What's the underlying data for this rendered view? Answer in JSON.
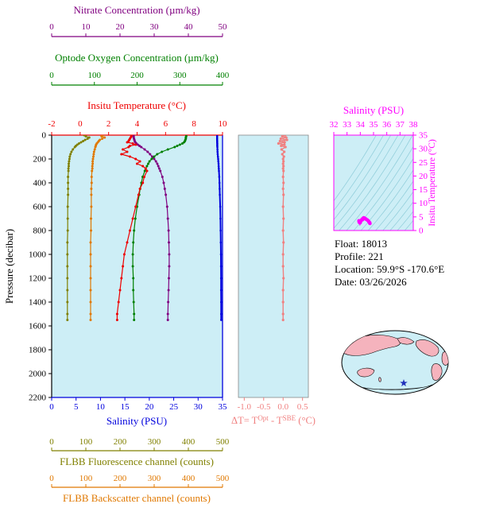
{
  "colors": {
    "plot_bg": "#cdeef6",
    "nitrate": "#800080",
    "oxygen": "#008000",
    "temperature": "#ee0000",
    "salinity": "#0000dd",
    "fluorescence": "#808000",
    "backscatter": "#e07800",
    "delta_t": "#f08080",
    "ts": "#ff00ff",
    "pressure": "#000000",
    "isopycnal": "#8ccbd8"
  },
  "titles": {
    "nitrate": "Nitrate Concentration (µm/kg)",
    "oxygen": "Optode Oxygen Concentration (µm/kg)",
    "temperature": "Insitu Temperature (°C)",
    "salinity": "Salinity (PSU)",
    "pressure": "Pressure (decibar)",
    "fluorescence": "FLBB Fluorescence channel (counts)",
    "backscatter": "FLBB Backscatter channel (counts)",
    "ts_salinity": "Salinity (PSU)",
    "ts_temperature": "Insitu Temperature (°C)"
  },
  "info": {
    "float": "Float:  18013",
    "profile": "Profile:  221",
    "location": "Location:  59.9°S -170.6°E",
    "date": "Date:  03/26/2026"
  },
  "map": {
    "land": "#f5b3bd",
    "ocean": "#cdeef6",
    "star": "#2233bb"
  },
  "chart_data": [
    {
      "type": "line",
      "title": "Float vertical profiles vs pressure",
      "y_axis": {
        "label": "Pressure (decibar)",
        "min": 0,
        "max": 2200,
        "ticks": [
          0,
          200,
          400,
          600,
          800,
          1000,
          1200,
          1400,
          1600,
          1800,
          2000,
          2200
        ]
      },
      "pressures": [
        0,
        10,
        20,
        30,
        40,
        50,
        60,
        70,
        80,
        90,
        100,
        120,
        140,
        160,
        180,
        200,
        220,
        240,
        260,
        280,
        300,
        350,
        400,
        450,
        500,
        600,
        700,
        800,
        900,
        1000,
        1100,
        1200,
        1300,
        1400,
        1500,
        1550
      ],
      "series": [
        {
          "name": "fluorescence",
          "label": "FLBB Fluorescence channel (counts)",
          "color": "#808000",
          "min": 0,
          "max": 500,
          "ticks": [
            0,
            100,
            200,
            300,
            400,
            500
          ],
          "values": [
            95,
            100,
            110,
            105,
            98,
            92,
            86,
            80,
            75,
            71,
            68,
            62,
            58,
            55,
            53,
            52,
            51,
            50,
            50,
            49,
            49,
            48,
            48,
            48,
            48,
            47,
            47,
            47,
            46,
            46,
            46,
            46,
            46,
            46,
            46,
            46
          ]
        },
        {
          "name": "backscatter",
          "label": "FLBB Backscatter channel (counts)",
          "color": "#e07800",
          "min": 0,
          "max": 500,
          "ticks": [
            0,
            100,
            200,
            300,
            400,
            500
          ],
          "values": [
            150,
            146,
            155,
            148,
            141,
            138,
            135,
            132,
            130,
            129,
            128,
            126,
            124,
            123,
            122,
            121,
            120,
            120,
            119,
            119,
            118,
            117,
            117,
            116,
            116,
            116,
            115,
            115,
            114,
            114,
            114,
            114,
            114,
            114,
            114,
            114
          ]
        },
        {
          "name": "nitrate",
          "label": "Nitrate Concentration (µm/kg)",
          "color": "#800080",
          "min": 0,
          "max": 50,
          "ticks": [
            0,
            10,
            20,
            30,
            40,
            50
          ],
          "values": [
            24.0,
            24.0,
            24.0,
            24.1,
            24.2,
            24.3,
            24.5,
            24.8,
            25.2,
            25.7,
            26.2,
            27.2,
            28.1,
            28.8,
            29.4,
            30.0,
            30.5,
            30.9,
            31.2,
            31.5,
            31.8,
            32.4,
            32.8,
            33.1,
            33.4,
            33.8,
            34.0,
            34.2,
            34.3,
            34.4,
            34.4,
            34.3,
            34.2,
            34.1,
            34.0,
            34.0
          ]
        },
        {
          "name": "oxygen",
          "label": "Optode Oxygen Concentration (µm/kg)",
          "color": "#008000",
          "min": 0,
          "max": 400,
          "ticks": [
            0,
            100,
            200,
            300,
            400
          ],
          "values": [
            315,
            315,
            314,
            314,
            313,
            312,
            310,
            306,
            300,
            294,
            288,
            272,
            258,
            247,
            240,
            234,
            229,
            226,
            223,
            220,
            218,
            213,
            210,
            207,
            205,
            200,
            196,
            193,
            191,
            190,
            190,
            191,
            191,
            192,
            193,
            193
          ]
        },
        {
          "name": "temperature",
          "label": "Insitu Temperature (°C)",
          "color": "#ee0000",
          "min": -2,
          "max": 10,
          "ticks": [
            -2,
            0,
            2,
            4,
            6,
            8,
            10
          ],
          "values": [
            3.6,
            3.6,
            3.55,
            3.5,
            3.45,
            3.4,
            3.3,
            3.7,
            3.9,
            3.5,
            3.4,
            3.0,
            3.3,
            2.9,
            3.5,
            3.9,
            4.2,
            4.0,
            4.4,
            4.6,
            4.7,
            4.5,
            4.4,
            4.2,
            4.1,
            3.9,
            3.7,
            3.5,
            3.3,
            3.1,
            3.0,
            2.9,
            2.8,
            2.7,
            2.6,
            2.6
          ]
        },
        {
          "name": "salinity",
          "label": "Salinity (PSU)",
          "color": "#0000dd",
          "min": 0,
          "max": 35,
          "ticks": [
            0,
            5,
            10,
            15,
            20,
            25,
            30,
            35
          ],
          "values": [
            33.9,
            33.9,
            33.9,
            33.9,
            33.9,
            33.91,
            33.91,
            33.92,
            33.92,
            33.93,
            33.94,
            33.96,
            33.98,
            34.0,
            34.05,
            34.1,
            34.14,
            34.18,
            34.21,
            34.24,
            34.27,
            34.33,
            34.38,
            34.42,
            34.45,
            34.52,
            34.57,
            34.61,
            34.64,
            34.67,
            34.69,
            34.7,
            34.71,
            34.72,
            34.73,
            34.73
          ]
        }
      ]
    },
    {
      "type": "line",
      "title": "ΔT= T^Opt - T^SBE (°C)",
      "title_segments": [
        {
          "text": "ΔT= T",
          "sup": false
        },
        {
          "text": "Opt",
          "sup": true
        },
        {
          "text": " - T",
          "sup": false
        },
        {
          "text": "SBE",
          "sup": true
        },
        {
          "text": " (°C)",
          "sup": false
        }
      ],
      "color": "#f08080",
      "x_axis": {
        "min": -1.15,
        "max": 0.65,
        "ticks": [
          -1.0,
          -0.5,
          0.0,
          0.5
        ]
      },
      "pressures": [
        0,
        10,
        20,
        30,
        40,
        50,
        60,
        70,
        80,
        90,
        100,
        120,
        140,
        160,
        180,
        200,
        220,
        240,
        260,
        280,
        300,
        350,
        400,
        450,
        500,
        600,
        700,
        800,
        900,
        1000,
        1100,
        1200,
        1300,
        1400,
        1500,
        1550
      ],
      "values": [
        0.05,
        -0.02,
        0.08,
        -0.06,
        0.1,
        -0.08,
        0.04,
        -0.12,
        0.03,
        -0.05,
        0.06,
        -0.04,
        0.03,
        -0.02,
        0.02,
        0.0,
        0.01,
        0.0,
        0.01,
        0.0,
        0.01,
        0.0,
        0.01,
        0.0,
        0.01,
        0.0,
        0.01,
        0.0,
        0.01,
        0.0,
        0.0,
        0.01,
        0.0,
        0.0,
        0.0,
        0.0
      ]
    },
    {
      "type": "scatter",
      "title": "Temperature-Salinity diagram with isopycnal contours",
      "color": "#ff00ff",
      "x_axis": {
        "label": "Salinity (PSU)",
        "min": 32,
        "max": 38,
        "ticks": [
          32,
          33,
          34,
          35,
          36,
          37,
          38
        ]
      },
      "y_axis": {
        "label": "Insitu Temperature (°C)",
        "min": 0,
        "max": 35,
        "ticks": [
          0,
          5,
          10,
          15,
          20,
          25,
          30,
          35
        ]
      },
      "points": [
        [
          33.9,
          3.6
        ],
        [
          33.9,
          3.5
        ],
        [
          33.91,
          3.4
        ],
        [
          33.92,
          3.0
        ],
        [
          33.94,
          3.4
        ],
        [
          33.96,
          3.0
        ],
        [
          33.98,
          3.3
        ],
        [
          34.0,
          2.9
        ],
        [
          34.05,
          3.5
        ],
        [
          34.1,
          3.9
        ],
        [
          34.14,
          4.2
        ],
        [
          34.18,
          4.0
        ],
        [
          34.21,
          4.4
        ],
        [
          34.24,
          4.6
        ],
        [
          34.27,
          4.7
        ],
        [
          34.33,
          4.5
        ],
        [
          34.38,
          4.4
        ],
        [
          34.42,
          4.2
        ],
        [
          34.45,
          4.1
        ],
        [
          34.52,
          3.9
        ],
        [
          34.57,
          3.7
        ],
        [
          34.61,
          3.5
        ],
        [
          34.64,
          3.3
        ],
        [
          34.67,
          3.1
        ],
        [
          34.69,
          3.0
        ],
        [
          34.7,
          2.9
        ],
        [
          34.71,
          2.8
        ],
        [
          34.72,
          2.7
        ],
        [
          34.73,
          2.6
        ]
      ]
    }
  ]
}
